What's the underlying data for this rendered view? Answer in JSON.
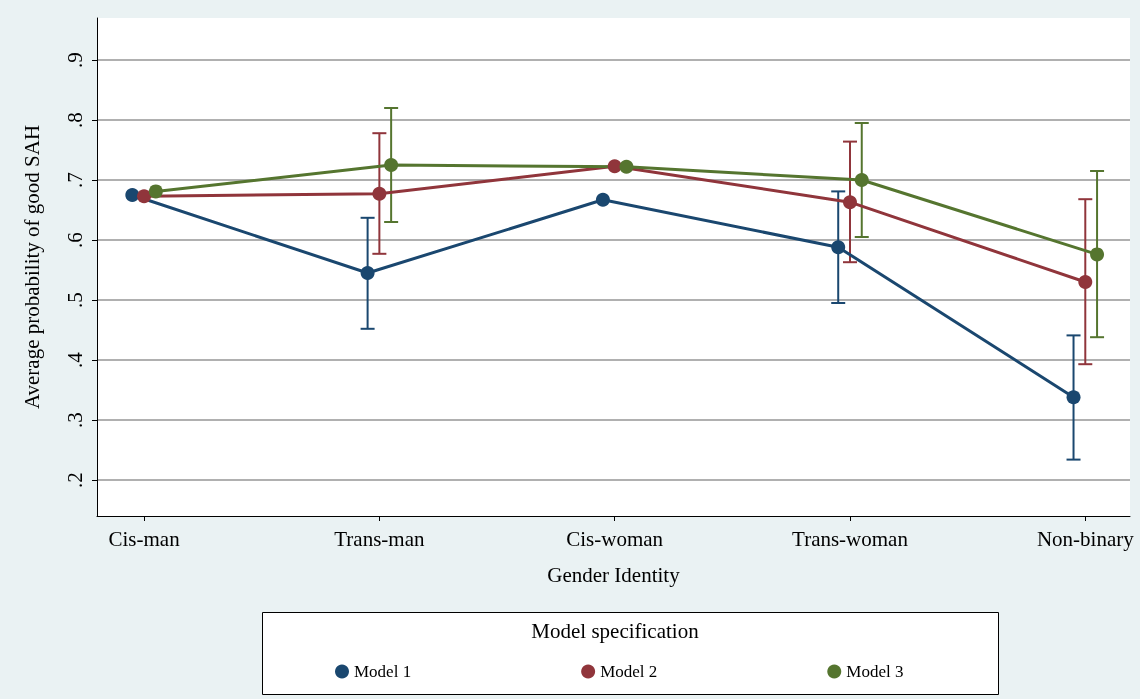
{
  "chart_data": {
    "type": "line",
    "xlabel": "Gender Identity",
    "ylabel": "Average probability of good SAH",
    "legend_title": "Model specification",
    "categories": [
      "Cis-man",
      "Trans-man",
      "Cis-woman",
      "Trans-woman",
      "Non-binary"
    ],
    "series": [
      {
        "name": "Model 1",
        "color": "#1a476f",
        "values": [
          0.675,
          0.545,
          0.667,
          0.588,
          0.338
        ],
        "errors": [
          null,
          [
            0.452,
            0.637
          ],
          null,
          [
            0.495,
            0.681
          ],
          [
            0.234,
            0.441
          ]
        ]
      },
      {
        "name": "Model 2",
        "color": "#90353b",
        "values": [
          0.673,
          0.677,
          0.723,
          0.663,
          0.53
        ],
        "errors": [
          null,
          [
            0.577,
            0.778
          ],
          null,
          [
            0.563,
            0.764
          ],
          [
            0.393,
            0.668
          ]
        ]
      },
      {
        "name": "Model 3",
        "color": "#55752f",
        "values": [
          0.681,
          0.725,
          0.722,
          0.7,
          0.576
        ],
        "errors": [
          null,
          [
            0.63,
            0.82
          ],
          null,
          [
            0.605,
            0.795
          ],
          [
            0.438,
            0.715
          ]
        ]
      }
    ],
    "ylim": [
      0.14,
      0.97
    ],
    "yticks": [
      {
        "value": 0.2,
        "label": ".2"
      },
      {
        "value": 0.3,
        "label": ".3"
      },
      {
        "value": 0.4,
        "label": ".4"
      },
      {
        "value": 0.5,
        "label": ".5"
      },
      {
        "value": 0.6,
        "label": ".6"
      },
      {
        "value": 0.7,
        "label": ".7"
      },
      {
        "value": 0.8,
        "label": ".8"
      },
      {
        "value": 0.9,
        "label": ".9"
      }
    ],
    "grid": "y",
    "legend": "bottom",
    "marker": "circle",
    "line_style": "solid"
  }
}
